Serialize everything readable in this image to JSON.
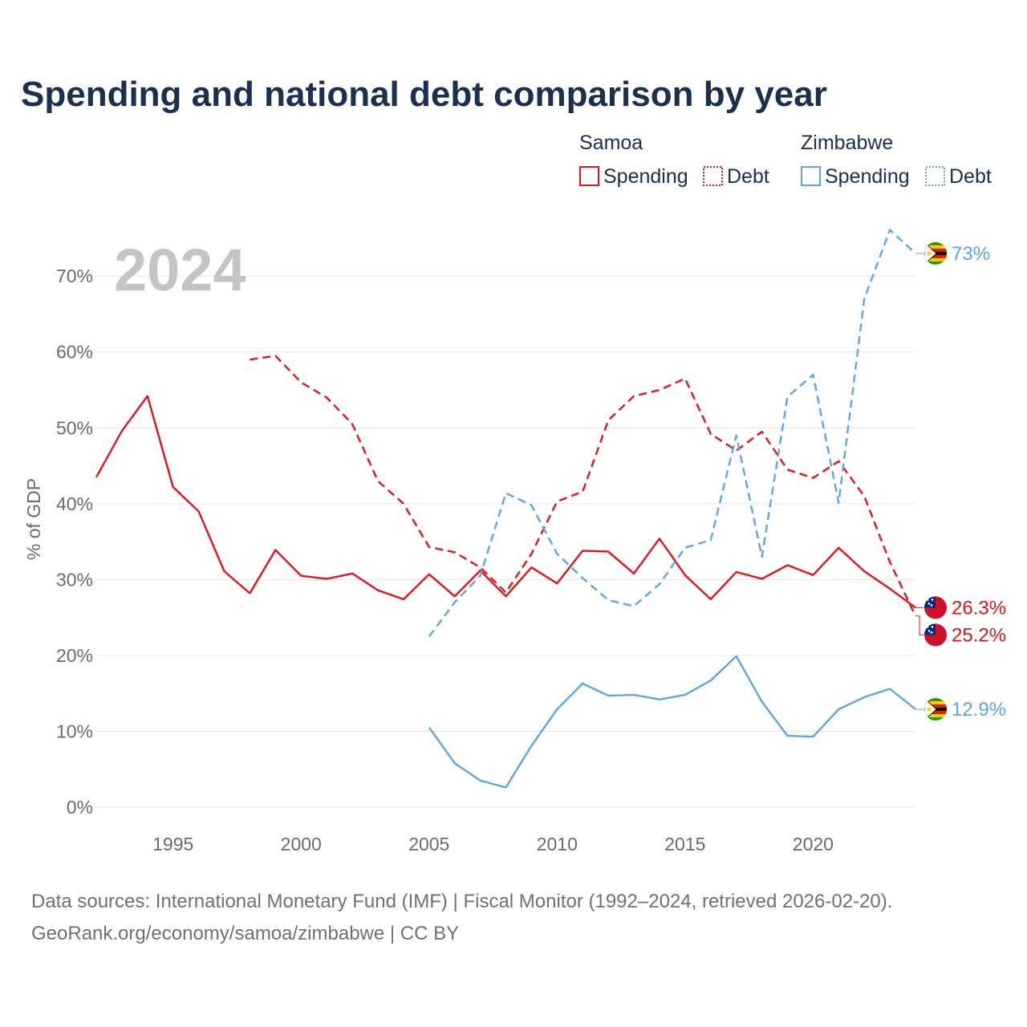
{
  "chart_data": {
    "type": "line",
    "title": "Spending and national debt comparison by year",
    "year_marker": "2024",
    "ylabel": "% of GDP",
    "xlabel": "",
    "xlim": [
      1992,
      2024
    ],
    "ylim": [
      0,
      77
    ],
    "x_ticks": [
      1995,
      2000,
      2005,
      2010,
      2015,
      2020
    ],
    "y_ticks": [
      0,
      10,
      20,
      30,
      40,
      50,
      60,
      70
    ],
    "y_tick_labels": [
      "0%",
      "10%",
      "20%",
      "30%",
      "40%",
      "50%",
      "60%",
      "70%"
    ],
    "legend": {
      "placement": "top-right",
      "groups": [
        {
          "country": "Samoa",
          "items": [
            {
              "label": "Spending",
              "style": "solid"
            },
            {
              "label": "Debt",
              "style": "dotted"
            }
          ],
          "color": "#e8121b"
        },
        {
          "country": "Zimbabwe",
          "items": [
            {
              "label": "Spending",
              "style": "solid"
            },
            {
              "label": "Debt",
              "style": "dotted"
            }
          ],
          "color": "#5aa6e6"
        }
      ]
    },
    "series": [
      {
        "name": "Samoa Spending",
        "country": "Samoa",
        "kind": "spending",
        "color": "#e8121b",
        "dash": "",
        "x": [
          1992,
          1993,
          1994,
          1995,
          1996,
          1997,
          1998,
          1999,
          2000,
          2001,
          2002,
          2003,
          2004,
          2005,
          2006,
          2007,
          2008,
          2009,
          2010,
          2011,
          2012,
          2013,
          2014,
          2015,
          2016,
          2017,
          2018,
          2019,
          2020,
          2021,
          2022,
          2023,
          2024
        ],
        "values": [
          43.5,
          49.6,
          54.2,
          42.2,
          39.0,
          31.1,
          28.2,
          33.9,
          30.5,
          30.1,
          30.8,
          28.6,
          27.4,
          30.7,
          27.8,
          31.2,
          27.8,
          31.6,
          29.5,
          33.8,
          33.7,
          30.8,
          35.4,
          30.6,
          27.4,
          31.0,
          30.1,
          31.9,
          30.6,
          34.2,
          31.1,
          28.8,
          26.3
        ],
        "end_label": "26.3%"
      },
      {
        "name": "Samoa Debt",
        "country": "Samoa",
        "kind": "debt",
        "color": "#e8121b",
        "dash": "10,6",
        "x": [
          1998,
          1999,
          2000,
          2001,
          2002,
          2003,
          2004,
          2005,
          2006,
          2007,
          2008,
          2009,
          2010,
          2011,
          2012,
          2013,
          2014,
          2015,
          2016,
          2017,
          2018,
          2019,
          2020,
          2021,
          2022,
          2023,
          2024
        ],
        "values": [
          59.0,
          59.5,
          56.0,
          54.0,
          50.5,
          43.0,
          40.0,
          34.3,
          33.6,
          31.6,
          28.3,
          33.4,
          40.3,
          41.6,
          51.0,
          54.2,
          55.0,
          56.5,
          49.2,
          47.0,
          49.5,
          44.5,
          43.4,
          45.6,
          41.0,
          32.3,
          25.2
        ],
        "end_label": "25.2%"
      },
      {
        "name": "Zimbabwe Spending",
        "country": "Zimbabwe",
        "kind": "spending",
        "color": "#5aa6e6",
        "dash": "",
        "x": [
          2005,
          2006,
          2007,
          2008,
          2009,
          2010,
          2011,
          2012,
          2013,
          2014,
          2015,
          2016,
          2017,
          2018,
          2019,
          2020,
          2021,
          2022,
          2023,
          2024
        ],
        "values": [
          10.5,
          5.8,
          3.5,
          2.6,
          8.1,
          12.9,
          16.3,
          14.7,
          14.8,
          14.2,
          14.8,
          16.7,
          19.9,
          13.9,
          9.4,
          9.3,
          12.9,
          14.5,
          15.6,
          12.9
        ],
        "end_label": "12.9%"
      },
      {
        "name": "Zimbabwe Debt",
        "country": "Zimbabwe",
        "kind": "debt",
        "color": "#5aa6e6",
        "dash": "10,6",
        "x": [
          2005,
          2006,
          2007,
          2008,
          2009,
          2010,
          2011,
          2012,
          2013,
          2014,
          2015,
          2016,
          2017,
          2018,
          2019,
          2020,
          2021,
          2022,
          2023,
          2024
        ],
        "values": [
          22.5,
          27.0,
          30.5,
          41.4,
          39.8,
          33.4,
          30.2,
          27.3,
          26.5,
          29.4,
          34.2,
          35.2,
          49.0,
          33.0,
          54.1,
          57.0,
          40.1,
          67.0,
          76.1,
          73.0
        ],
        "end_label": "73%"
      }
    ]
  },
  "flags": {
    "samoa": {
      "name": "Samoa",
      "primary": "#ce1126",
      "canton": "#002b7f",
      "star": "#ffffff"
    },
    "zimbabwe": {
      "name": "Zimbabwe",
      "stripes": [
        "#319208",
        "#ffd200",
        "#de2010",
        "#000000"
      ],
      "triangle": "#ffffff",
      "bird": "#ffd200"
    }
  },
  "footer": {
    "source_line": "Data sources: International Monetary Fund (IMF) | Fiscal Monitor (1992–2024, retrieved 2026-02-20).",
    "url_line": "GeoRank.org/economy/samoa/zimbabwe | CC BY"
  }
}
